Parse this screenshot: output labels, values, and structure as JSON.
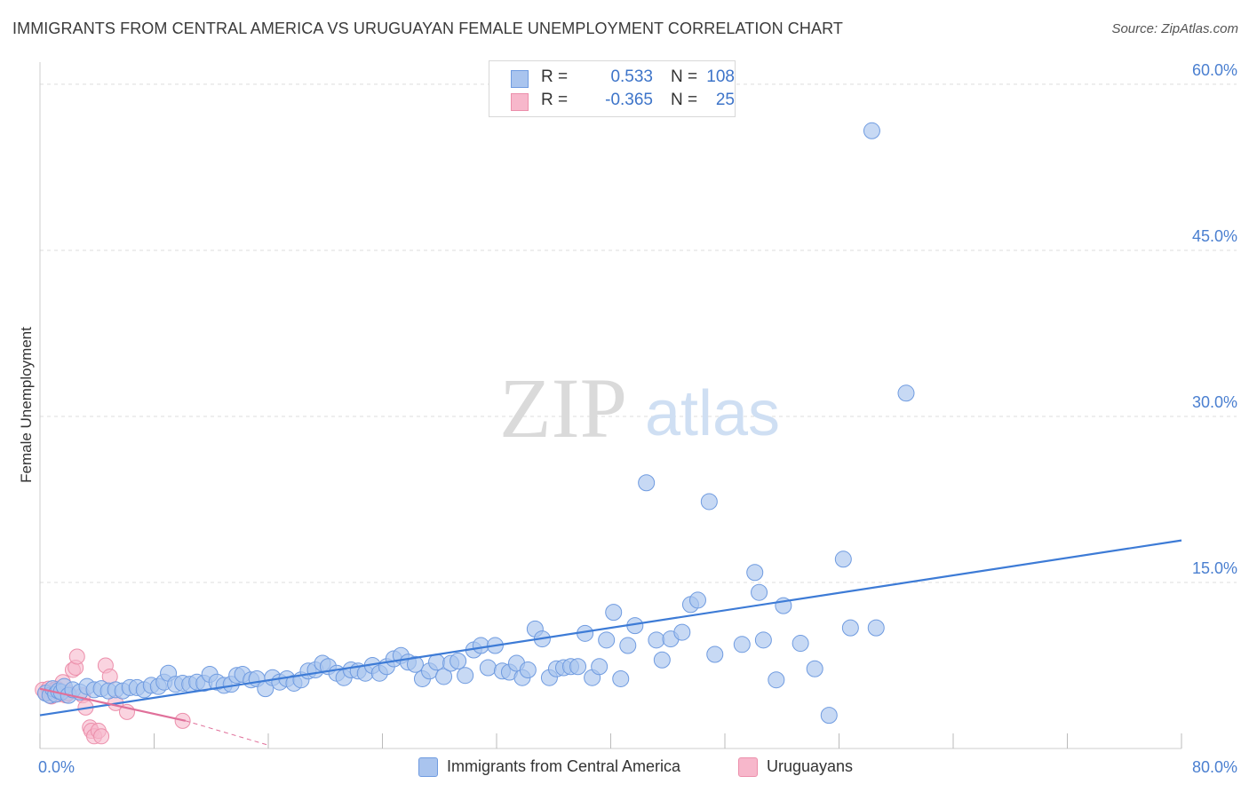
{
  "header": {
    "title": "IMMIGRANTS FROM CENTRAL AMERICA VS URUGUAYAN FEMALE UNEMPLOYMENT CORRELATION CHART",
    "source": "Source: ZipAtlas.com"
  },
  "watermark": {
    "zip": "ZIP",
    "atlas": "atlas"
  },
  "legend": {
    "rows": [
      {
        "r_label": "R =",
        "r_value": "0.533",
        "n_label": "N =",
        "n_value": "108"
      },
      {
        "r_label": "R =",
        "r_value": "-0.365",
        "n_label": "N =",
        "n_value": "25"
      }
    ]
  },
  "bottom_legend": {
    "items": [
      {
        "label": "Immigrants from Central America"
      },
      {
        "label": "Uruguayans"
      }
    ]
  },
  "colors": {
    "blue_fill": "#a9c4ee",
    "blue_stroke": "#6f9be0",
    "blue_line": "#3d7bd6",
    "pink_fill": "#f7b7cb",
    "pink_stroke": "#ec8fab",
    "pink_line": "#e0709a",
    "grid": "#dddddd",
    "tick_text": "#4a7fd0"
  },
  "chart_data": {
    "type": "scatter",
    "title": "IMMIGRANTS FROM CENTRAL AMERICA VS URUGUAYAN FEMALE UNEMPLOYMENT CORRELATION CHART",
    "xlabel": "",
    "ylabel": "Female Unemployment",
    "xlim": [
      0,
      80
    ],
    "ylim": [
      0,
      62
    ],
    "x_tick_labels": [
      "0.0%",
      "80.0%"
    ],
    "y_ticks": [
      15,
      30,
      45,
      60
    ],
    "y_tick_labels": [
      "15.0%",
      "30.0%",
      "45.0%",
      "60.0%"
    ],
    "grid": true,
    "series": [
      {
        "name": "Immigrants from Central America",
        "color": "#a9c4ee",
        "trendline": {
          "x": [
            0,
            80
          ],
          "y": [
            3.0,
            18.8
          ]
        },
        "points": [
          [
            0.4,
            5.0
          ],
          [
            0.7,
            4.8
          ],
          [
            0.9,
            5.4
          ],
          [
            1.1,
            4.9
          ],
          [
            1.3,
            5.2
          ],
          [
            1.5,
            5.1
          ],
          [
            1.7,
            5.6
          ],
          [
            2.0,
            4.8
          ],
          [
            2.3,
            5.3
          ],
          [
            2.8,
            5.1
          ],
          [
            3.3,
            5.6
          ],
          [
            3.8,
            5.3
          ],
          [
            4.3,
            5.4
          ],
          [
            4.8,
            5.2
          ],
          [
            5.3,
            5.3
          ],
          [
            5.8,
            5.2
          ],
          [
            6.3,
            5.5
          ],
          [
            6.8,
            5.5
          ],
          [
            7.3,
            5.3
          ],
          [
            7.8,
            5.7
          ],
          [
            8.3,
            5.6
          ],
          [
            8.7,
            6.0
          ],
          [
            9.0,
            6.8
          ],
          [
            9.5,
            5.8
          ],
          [
            10.0,
            5.9
          ],
          [
            10.5,
            5.8
          ],
          [
            11.0,
            6.0
          ],
          [
            11.5,
            5.9
          ],
          [
            11.9,
            6.7
          ],
          [
            12.4,
            6.0
          ],
          [
            12.9,
            5.7
          ],
          [
            13.4,
            5.8
          ],
          [
            13.8,
            6.6
          ],
          [
            14.2,
            6.7
          ],
          [
            14.8,
            6.2
          ],
          [
            15.2,
            6.3
          ],
          [
            15.8,
            5.4
          ],
          [
            16.3,
            6.4
          ],
          [
            16.8,
            6.0
          ],
          [
            17.3,
            6.3
          ],
          [
            17.8,
            5.9
          ],
          [
            18.3,
            6.2
          ],
          [
            18.8,
            7.0
          ],
          [
            19.3,
            7.1
          ],
          [
            19.8,
            7.7
          ],
          [
            20.2,
            7.4
          ],
          [
            20.8,
            6.8
          ],
          [
            21.3,
            6.4
          ],
          [
            21.8,
            7.1
          ],
          [
            22.3,
            7.0
          ],
          [
            22.8,
            6.8
          ],
          [
            23.3,
            7.5
          ],
          [
            23.8,
            6.8
          ],
          [
            24.3,
            7.4
          ],
          [
            24.8,
            8.1
          ],
          [
            25.3,
            8.4
          ],
          [
            25.8,
            7.8
          ],
          [
            26.3,
            7.6
          ],
          [
            26.8,
            6.3
          ],
          [
            27.3,
            7.0
          ],
          [
            27.8,
            7.8
          ],
          [
            28.3,
            6.5
          ],
          [
            28.8,
            7.7
          ],
          [
            29.3,
            7.9
          ],
          [
            29.8,
            6.6
          ],
          [
            30.4,
            8.9
          ],
          [
            30.9,
            9.3
          ],
          [
            31.4,
            7.3
          ],
          [
            31.9,
            9.3
          ],
          [
            32.4,
            7.0
          ],
          [
            32.9,
            6.9
          ],
          [
            33.4,
            7.7
          ],
          [
            33.8,
            6.4
          ],
          [
            34.2,
            7.1
          ],
          [
            34.7,
            10.8
          ],
          [
            35.2,
            9.9
          ],
          [
            35.7,
            6.4
          ],
          [
            36.2,
            7.2
          ],
          [
            36.7,
            7.3
          ],
          [
            37.2,
            7.4
          ],
          [
            37.7,
            7.4
          ],
          [
            38.2,
            10.4
          ],
          [
            38.7,
            6.4
          ],
          [
            39.2,
            7.4
          ],
          [
            39.7,
            9.8
          ],
          [
            40.2,
            12.3
          ],
          [
            40.7,
            6.3
          ],
          [
            41.2,
            9.3
          ],
          [
            41.7,
            11.1
          ],
          [
            42.5,
            24.0
          ],
          [
            43.2,
            9.8
          ],
          [
            43.6,
            8.0
          ],
          [
            44.2,
            9.9
          ],
          [
            45.0,
            10.5
          ],
          [
            45.6,
            13.0
          ],
          [
            46.1,
            13.4
          ],
          [
            46.9,
            22.3
          ],
          [
            47.3,
            8.5
          ],
          [
            49.2,
            9.4
          ],
          [
            50.1,
            15.9
          ],
          [
            50.4,
            14.1
          ],
          [
            50.7,
            9.8
          ],
          [
            51.6,
            6.2
          ],
          [
            52.1,
            12.9
          ],
          [
            53.3,
            9.5
          ],
          [
            54.3,
            7.2
          ],
          [
            55.3,
            3.0
          ],
          [
            56.3,
            17.1
          ],
          [
            56.8,
            10.9
          ],
          [
            58.3,
            55.8
          ],
          [
            58.6,
            10.9
          ],
          [
            60.7,
            32.1
          ]
        ]
      },
      {
        "name": "Uruguayans",
        "color": "#f7b7cb",
        "trendline": {
          "x": [
            0,
            10.2
          ],
          "y": [
            5.4,
            2.5
          ]
        },
        "trendline_dashed": {
          "x": [
            10.2,
            16.0
          ],
          "y": [
            2.5,
            0.3
          ]
        },
        "points": [
          [
            0.2,
            5.3
          ],
          [
            0.4,
            5.0
          ],
          [
            0.6,
            5.4
          ],
          [
            0.8,
            4.7
          ],
          [
            1.0,
            5.3
          ],
          [
            1.2,
            5.4
          ],
          [
            1.4,
            4.9
          ],
          [
            1.6,
            6.0
          ],
          [
            1.8,
            4.8
          ],
          [
            2.0,
            5.0
          ],
          [
            2.3,
            7.1
          ],
          [
            2.5,
            7.3
          ],
          [
            2.6,
            8.3
          ],
          [
            3.0,
            4.8
          ],
          [
            3.2,
            3.7
          ],
          [
            3.5,
            1.9
          ],
          [
            3.6,
            1.6
          ],
          [
            3.8,
            1.1
          ],
          [
            4.1,
            1.6
          ],
          [
            4.3,
            1.1
          ],
          [
            4.6,
            7.5
          ],
          [
            4.9,
            6.5
          ],
          [
            5.3,
            4.1
          ],
          [
            6.1,
            3.3
          ],
          [
            10.0,
            2.5
          ]
        ]
      }
    ]
  }
}
